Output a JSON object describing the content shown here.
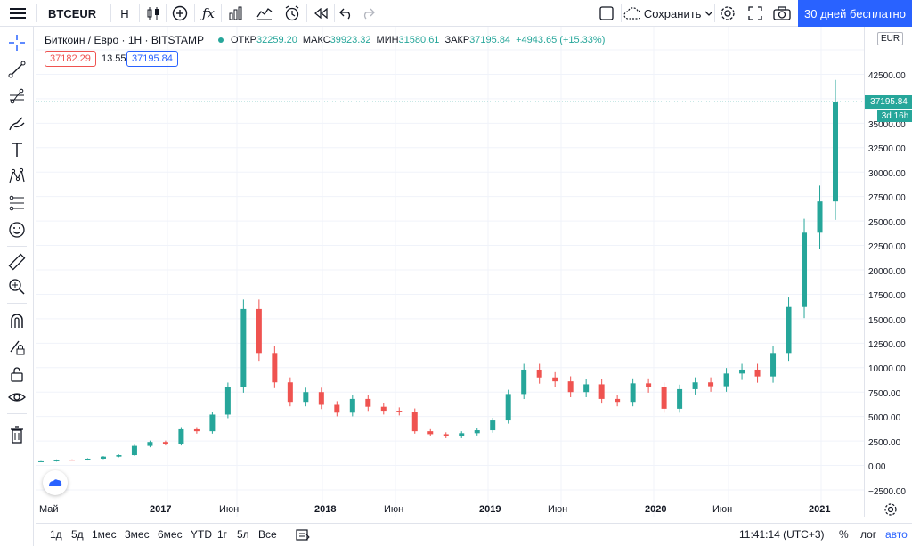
{
  "toolbar": {
    "symbol": "BTCEUR",
    "interval": "H",
    "save_label": "Сохранить",
    "cta_label": "30 дней бесплатно",
    "icons": [
      "menu-icon",
      "add-icon",
      "indicators-icon",
      "chart-type-icon",
      "compare-icon",
      "alert-icon",
      "replay-icon",
      "undo-icon",
      "redo-icon",
      "layout-icon",
      "cloud-icon",
      "settings-icon",
      "fullscreen-icon",
      "camera-icon"
    ]
  },
  "legend": {
    "title": "Биткоин / Евро · 1Н · BITSTAMP",
    "open_label": "ОТКР",
    "open": "32259.20",
    "high_label": "МАКС",
    "high": "39923.32",
    "low_label": "МИН",
    "low": "31580.61",
    "close_label": "ЗАКР",
    "close": "37195.84",
    "change": "+4943.65 (+15.33%)",
    "bid": "37182.29",
    "spread": "13.55",
    "ask": "37195.84"
  },
  "price_axis": {
    "currency": "EUR",
    "current_price": "37195.84",
    "countdown": "3d 16h",
    "ticks": [
      "42500.00",
      "40000.00",
      "35000.00",
      "32500.00",
      "30000.00",
      "27500.00",
      "25000.00",
      "22500.00",
      "20000.00",
      "17500.00",
      "15000.00",
      "12500.00",
      "10000.00",
      "7500.00",
      "5000.00",
      "2500.00",
      "0.00",
      "−2500.00"
    ]
  },
  "time_axis": {
    "labels": [
      {
        "text": "Май",
        "bold": false
      },
      {
        "text": "2017",
        "bold": true
      },
      {
        "text": "Июн",
        "bold": false
      },
      {
        "text": "2018",
        "bold": true
      },
      {
        "text": "Июн",
        "bold": false
      },
      {
        "text": "2019",
        "bold": true
      },
      {
        "text": "Июн",
        "bold": false
      },
      {
        "text": "2020",
        "bold": true
      },
      {
        "text": "Июн",
        "bold": false
      },
      {
        "text": "2021",
        "bold": true
      }
    ]
  },
  "bottombar": {
    "ranges": [
      "1д",
      "5д",
      "1мес",
      "3мес",
      "6мес",
      "YTD",
      "1г",
      "5л",
      "Все"
    ],
    "clock": "11:41:14 (UTC+3)",
    "percent_label": "%",
    "log_label": "лог",
    "auto_label": "авто"
  },
  "colors": {
    "up": "#26a69a",
    "down": "#ef5350",
    "accent": "#2962ff"
  },
  "chart_data": {
    "type": "candlestick",
    "series": [
      {
        "name": "BTCEUR",
        "points": [
          {
            "t": "2016-05",
            "c": 420
          },
          {
            "t": "2016-07",
            "c": 580
          },
          {
            "t": "2016-09",
            "c": 540
          },
          {
            "t": "2016-11",
            "c": 690
          },
          {
            "t": "2017-01",
            "c": 900
          },
          {
            "t": "2017-03",
            "c": 1050
          },
          {
            "t": "2017-05",
            "c": 2000
          },
          {
            "t": "2017-06",
            "c": 2400
          },
          {
            "t": "2017-07",
            "c": 2200
          },
          {
            "t": "2017-08",
            "c": 3700
          },
          {
            "t": "2017-09",
            "c": 3500
          },
          {
            "t": "2017-10",
            "c": 5200
          },
          {
            "t": "2017-11",
            "c": 8000
          },
          {
            "t": "2017-12",
            "c": 16000
          },
          {
            "t": "2018-01",
            "c": 11500
          },
          {
            "t": "2018-02",
            "c": 8500
          },
          {
            "t": "2018-03",
            "c": 6500
          },
          {
            "t": "2018-04",
            "c": 7500
          },
          {
            "t": "2018-05",
            "c": 6200
          },
          {
            "t": "2018-06",
            "c": 5400
          },
          {
            "t": "2018-07",
            "c": 6800
          },
          {
            "t": "2018-08",
            "c": 6000
          },
          {
            "t": "2018-09",
            "c": 5600
          },
          {
            "t": "2018-10",
            "c": 5500
          },
          {
            "t": "2018-11",
            "c": 3500
          },
          {
            "t": "2018-12",
            "c": 3200
          },
          {
            "t": "2019-01",
            "c": 3000
          },
          {
            "t": "2019-02",
            "c": 3300
          },
          {
            "t": "2019-03",
            "c": 3600
          },
          {
            "t": "2019-04",
            "c": 4600
          },
          {
            "t": "2019-05",
            "c": 7300
          },
          {
            "t": "2019-06",
            "c": 9800
          },
          {
            "t": "2019-07",
            "c": 9000
          },
          {
            "t": "2019-08",
            "c": 8600
          },
          {
            "t": "2019-09",
            "c": 7500
          },
          {
            "t": "2019-10",
            "c": 8300
          },
          {
            "t": "2019-11",
            "c": 6800
          },
          {
            "t": "2019-12",
            "c": 6500
          },
          {
            "t": "2020-01",
            "c": 8400
          },
          {
            "t": "2020-02",
            "c": 8000
          },
          {
            "t": "2020-03",
            "c": 5800
          },
          {
            "t": "2020-04",
            "c": 7800
          },
          {
            "t": "2020-05",
            "c": 8500
          },
          {
            "t": "2020-06",
            "c": 8100
          },
          {
            "t": "2020-07",
            "c": 9400
          },
          {
            "t": "2020-08",
            "c": 9800
          },
          {
            "t": "2020-09",
            "c": 9100
          },
          {
            "t": "2020-10",
            "c": 11500
          },
          {
            "t": "2020-11",
            "c": 16200
          },
          {
            "t": "2020-12",
            "c": 23800
          },
          {
            "t": "2021-01",
            "c": 27000
          },
          {
            "t": "2021-02",
            "c": 37195.84
          }
        ]
      }
    ],
    "ylim": [
      -2500,
      42500
    ],
    "grid": true
  }
}
